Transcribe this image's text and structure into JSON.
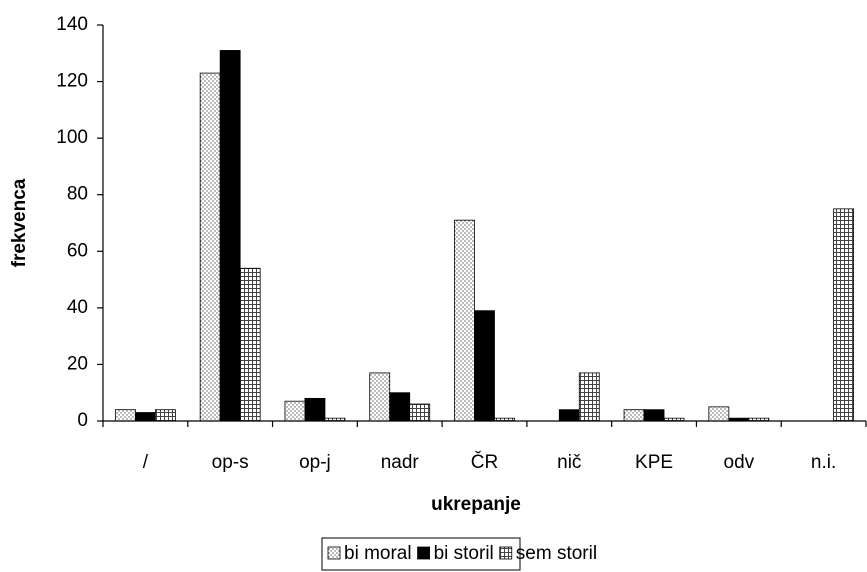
{
  "chart_data": {
    "type": "bar",
    "categories": [
      "/",
      "op-s",
      "op-j",
      "nadr",
      "ČR",
      "nič",
      "KPE",
      "odv",
      "n.i."
    ],
    "series": [
      {
        "name": "bi moral",
        "color": "#ffffff",
        "values": [
          4,
          123,
          7,
          17,
          71,
          0,
          4,
          5,
          0
        ]
      },
      {
        "name": "bi storil",
        "color": "#000000",
        "values": [
          3,
          131,
          8,
          10,
          39,
          4,
          4,
          1,
          0
        ]
      },
      {
        "name": "sem storil",
        "color": "#ffffff",
        "values": [
          4,
          54,
          1,
          6,
          1,
          17,
          1,
          1,
          75
        ]
      }
    ],
    "xlabel": "ukrepanje",
    "ylabel": "frekvenca",
    "ylim": [
      0,
      140
    ],
    "yticks": [
      0,
      20,
      40,
      60,
      80,
      100,
      120,
      140
    ],
    "grid": false,
    "legend": "bottom"
  }
}
